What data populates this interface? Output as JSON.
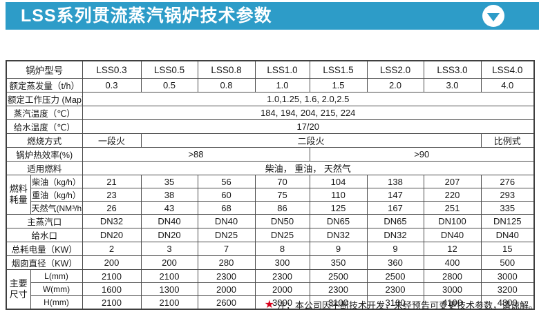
{
  "banner": {
    "title": "LSS系列贯流蒸汽锅炉技术参数",
    "background": "#2d9cc8",
    "dropdown_icon": "circle-chevron-down"
  },
  "table": {
    "border_color": "#4a4a4a",
    "column_headers": [
      "锅炉型号",
      "LSS0.3",
      "LSS0.5",
      "LSS0.8",
      "LSS1.0",
      "LSS1.5",
      "LSS2.0",
      "LSS3.0",
      "LSS4.0"
    ],
    "rows": [
      {
        "cells": [
          {
            "t": "锅炉型号",
            "k": "label",
            "cs": 2
          },
          {
            "t": "LSS0.3",
            "k": "head"
          },
          {
            "t": "LSS0.5",
            "k": "head"
          },
          {
            "t": "LSS0.8",
            "k": "head"
          },
          {
            "t": "LSS1.0",
            "k": "head"
          },
          {
            "t": "LSS1.5",
            "k": "head"
          },
          {
            "t": "LSS2.0",
            "k": "head"
          },
          {
            "t": "LSS3.0",
            "k": "head"
          },
          {
            "t": "LSS4.0",
            "k": "head"
          }
        ],
        "head": true
      },
      {
        "cells": [
          {
            "t": "额定蒸发量（t/h）",
            "k": "label",
            "cs": 2
          },
          {
            "t": "0.3"
          },
          {
            "t": "0.5"
          },
          {
            "t": "0.8"
          },
          {
            "t": "1.0"
          },
          {
            "t": "1.5"
          },
          {
            "t": "2.0"
          },
          {
            "t": "3.0"
          },
          {
            "t": "4.0"
          }
        ]
      },
      {
        "cells": [
          {
            "t": "额定工作压力 (Map)",
            "k": "label",
            "cs": 2
          },
          {
            "t": "1.0,1.25, 1.6, 2.0,2.5",
            "cs": 8
          }
        ]
      },
      {
        "cells": [
          {
            "t": "蒸汽温度（℃）",
            "k": "label",
            "cs": 2
          },
          {
            "t": "184, 194, 204, 215, 224",
            "cs": 8
          }
        ]
      },
      {
        "cells": [
          {
            "t": "给水温度（℃）",
            "k": "label",
            "cs": 2
          },
          {
            "t": "17/20",
            "cs": 8
          }
        ]
      },
      {
        "cells": [
          {
            "t": "燃烧方式",
            "k": "label",
            "cs": 2
          },
          {
            "t": "一段火"
          },
          {
            "t": "二段火",
            "cs": 6
          },
          {
            "t": "比例式"
          }
        ]
      },
      {
        "cells": [
          {
            "t": "锅炉热效率(%)",
            "k": "label",
            "cs": 2
          },
          {
            "t": ">88",
            "cs": 4
          },
          {
            "t": ">90",
            "cs": 4
          }
        ]
      },
      {
        "cells": [
          {
            "t": "适用燃料",
            "k": "label",
            "cs": 2
          },
          {
            "t": "柴油，  重油，  天然气",
            "cs": 8
          }
        ]
      },
      {
        "cells": [
          {
            "t": "燃料耗量",
            "k": "group",
            "rs": 3
          },
          {
            "t": "柴油（kg/h）",
            "k": "sub"
          },
          {
            "t": "21"
          },
          {
            "t": "35"
          },
          {
            "t": "56"
          },
          {
            "t": "70"
          },
          {
            "t": "104"
          },
          {
            "t": "138"
          },
          {
            "t": "207"
          },
          {
            "t": "276"
          }
        ]
      },
      {
        "cells": [
          {
            "t": "重油（kg/h）",
            "k": "sub"
          },
          {
            "t": "23"
          },
          {
            "t": "38"
          },
          {
            "t": "60"
          },
          {
            "t": "75"
          },
          {
            "t": "110"
          },
          {
            "t": "147"
          },
          {
            "t": "220"
          },
          {
            "t": "293"
          }
        ]
      },
      {
        "cells": [
          {
            "t": "天然气(NM³/h)",
            "k": "sub"
          },
          {
            "t": "26"
          },
          {
            "t": "43"
          },
          {
            "t": "68"
          },
          {
            "t": "86"
          },
          {
            "t": "125"
          },
          {
            "t": "167"
          },
          {
            "t": "251"
          },
          {
            "t": "335"
          }
        ]
      },
      {
        "cells": [
          {
            "t": "主蒸汽口",
            "k": "label",
            "cs": 2
          },
          {
            "t": "DN32"
          },
          {
            "t": "DN40"
          },
          {
            "t": "DN40"
          },
          {
            "t": "DN50"
          },
          {
            "t": "DN65"
          },
          {
            "t": "DN65"
          },
          {
            "t": "DN100"
          },
          {
            "t": "DN125"
          }
        ]
      },
      {
        "cells": [
          {
            "t": "给水口",
            "k": "label",
            "cs": 2
          },
          {
            "t": "DN20"
          },
          {
            "t": "DN20"
          },
          {
            "t": "DN25"
          },
          {
            "t": "DN25"
          },
          {
            "t": "DN32"
          },
          {
            "t": "DN32"
          },
          {
            "t": "DN40"
          },
          {
            "t": "DN40"
          }
        ]
      },
      {
        "cells": [
          {
            "t": "总耗电量（KW）",
            "k": "label",
            "cs": 2
          },
          {
            "t": "2"
          },
          {
            "t": "3"
          },
          {
            "t": "7"
          },
          {
            "t": "8"
          },
          {
            "t": "9"
          },
          {
            "t": "9"
          },
          {
            "t": "12"
          },
          {
            "t": "15"
          }
        ]
      },
      {
        "cells": [
          {
            "t": "烟囱直径（KW）",
            "k": "label",
            "cs": 2
          },
          {
            "t": "200"
          },
          {
            "t": "200"
          },
          {
            "t": "280"
          },
          {
            "t": "300"
          },
          {
            "t": "350"
          },
          {
            "t": "360"
          },
          {
            "t": "400"
          },
          {
            "t": "500"
          }
        ]
      },
      {
        "cells": [
          {
            "t": "主要尺寸",
            "k": "group",
            "rs": 3
          },
          {
            "t": "L(mm)",
            "k": "sub"
          },
          {
            "t": "2100"
          },
          {
            "t": "2100"
          },
          {
            "t": "2300"
          },
          {
            "t": "2300"
          },
          {
            "t": "2500"
          },
          {
            "t": "2500"
          },
          {
            "t": "2800"
          },
          {
            "t": "3000"
          }
        ]
      },
      {
        "cells": [
          {
            "t": "W(mm)",
            "k": "sub"
          },
          {
            "t": "1600"
          },
          {
            "t": "1300"
          },
          {
            "t": "2000"
          },
          {
            "t": "2000"
          },
          {
            "t": "2300"
          },
          {
            "t": "2300"
          },
          {
            "t": "3000"
          },
          {
            "t": "3200"
          }
        ]
      },
      {
        "cells": [
          {
            "t": "H(mm)",
            "k": "sub"
          },
          {
            "t": "2100"
          },
          {
            "t": "2100"
          },
          {
            "t": "2600"
          },
          {
            "t": "3000"
          },
          {
            "t": "3100"
          },
          {
            "t": "3100"
          },
          {
            "t": "4100"
          },
          {
            "t": "4800"
          }
        ]
      }
    ]
  },
  "footer_note": {
    "star": "★",
    "star_color": "#d9001b",
    "text": "注：本公司因不断技术开发，未经预告可变更技术参数，请谅解。"
  }
}
